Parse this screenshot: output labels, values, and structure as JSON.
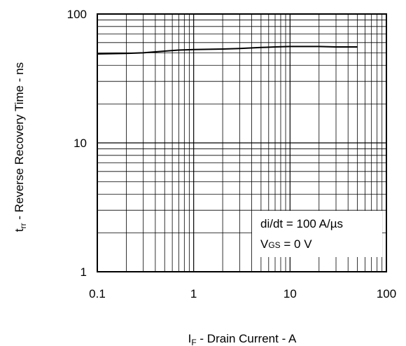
{
  "chart_data": {
    "type": "line",
    "title": "",
    "xscale": "log",
    "yscale": "log",
    "xlim": [
      0.1,
      100
    ],
    "ylim": [
      1,
      100
    ],
    "grid": true,
    "xlabel": {
      "main": "I",
      "sub": "F",
      "rest": " - Drain Current - A"
    },
    "ylabel": {
      "main": "t",
      "sub": "rr",
      "rest": " - Reverse Recovery Time - ns"
    },
    "x_tick_labels": [
      "0.1",
      "1",
      "10",
      "100"
    ],
    "y_tick_labels": [
      "1",
      "10",
      "100"
    ],
    "annotations": {
      "line1": "di/dt = 100 A/µs",
      "line2_main": "V",
      "line2_sub": "GS",
      "line2_rest": " = 0 V"
    },
    "series": [
      {
        "x": [
          0.1,
          0.2,
          0.3,
          0.5,
          0.7,
          1,
          2,
          3,
          5,
          7,
          10,
          20,
          30,
          50
        ],
        "y": [
          49,
          49.5,
          50,
          51.5,
          52.5,
          53,
          53.5,
          54,
          55,
          55.5,
          56,
          56,
          55.5,
          55.5
        ]
      }
    ]
  }
}
